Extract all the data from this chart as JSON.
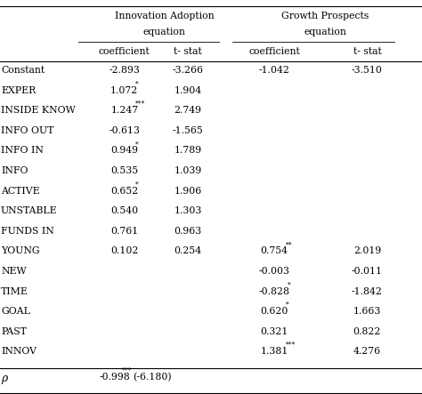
{
  "title_line1": "Innovation Adoption",
  "title_line2": "equation",
  "title_line3": "Growth Prospects",
  "title_line4": "equation",
  "col_headers": [
    "coefficient",
    "t- stat",
    "coefficient",
    "t- stat"
  ],
  "rows": [
    {
      "label": "Constant",
      "c1": "-2.893",
      "c1_sup": "",
      "t1": "-3.266",
      "c2": "-1.042",
      "c2_sup": "",
      "t2": "-3.510"
    },
    {
      "label": "EXPER",
      "c1": "1.072",
      "c1_sup": "*",
      "t1": "1.904",
      "c2": "",
      "c2_sup": "",
      "t2": ""
    },
    {
      "label": "INSIDE KNOW",
      "c1": "1.247",
      "c1_sup": "***",
      "t1": "2.749",
      "c2": "",
      "c2_sup": "",
      "t2": ""
    },
    {
      "label": "INFO OUT",
      "c1": "-0.613",
      "c1_sup": "",
      "t1": "-1.565",
      "c2": "",
      "c2_sup": "",
      "t2": ""
    },
    {
      "label": "INFO IN",
      "c1": "0.949",
      "c1_sup": "*",
      "t1": "1.789",
      "c2": "",
      "c2_sup": "",
      "t2": ""
    },
    {
      "label": "INFO",
      "c1": "0.535",
      "c1_sup": "",
      "t1": "1.039",
      "c2": "",
      "c2_sup": "",
      "t2": ""
    },
    {
      "label": "ACTIVE",
      "c1": "0.652",
      "c1_sup": "*",
      "t1": "1.906",
      "c2": "",
      "c2_sup": "",
      "t2": ""
    },
    {
      "label": "UNSTABLE",
      "c1": "0.540",
      "c1_sup": "",
      "t1": "1.303",
      "c2": "",
      "c2_sup": "",
      "t2": ""
    },
    {
      "label": "FUNDS IN",
      "c1": "0.761",
      "c1_sup": "",
      "t1": "0.963",
      "c2": "",
      "c2_sup": "",
      "t2": ""
    },
    {
      "label": "YOUNG",
      "c1": "0.102",
      "c1_sup": "",
      "t1": "0.254",
      "c2": "0.754",
      "c2_sup": "**",
      "t2": "2.019"
    },
    {
      "label": "NEW",
      "c1": "",
      "c1_sup": "",
      "t1": "",
      "c2": "-0.003",
      "c2_sup": "",
      "t2": "-0.011"
    },
    {
      "label": "TIME",
      "c1": "",
      "c1_sup": "",
      "t1": "",
      "c2": "-0.828",
      "c2_sup": "*",
      "t2": "-1.842"
    },
    {
      "label": "GOAL",
      "c1": "",
      "c1_sup": "",
      "t1": "",
      "c2": "0.620",
      "c2_sup": "*",
      "t2": "1.663"
    },
    {
      "label": "PAST",
      "c1": "",
      "c1_sup": "",
      "t1": "",
      "c2": "0.321",
      "c2_sup": "",
      "t2": "0.822"
    },
    {
      "label": "INNOV",
      "c1": "",
      "c1_sup": "",
      "t1": "",
      "c2": "1.381",
      "c2_sup": "***",
      "t2": "4.276"
    }
  ],
  "rho_label": "ρ",
  "rho_value": "-0.998",
  "rho_sup": "***",
  "rho_extra": "(-6.180)",
  "bg_color": "#ffffff",
  "text_color": "#000000",
  "font_size": 7.8,
  "figwidth": 4.74,
  "figheight": 4.43,
  "dpi": 100
}
